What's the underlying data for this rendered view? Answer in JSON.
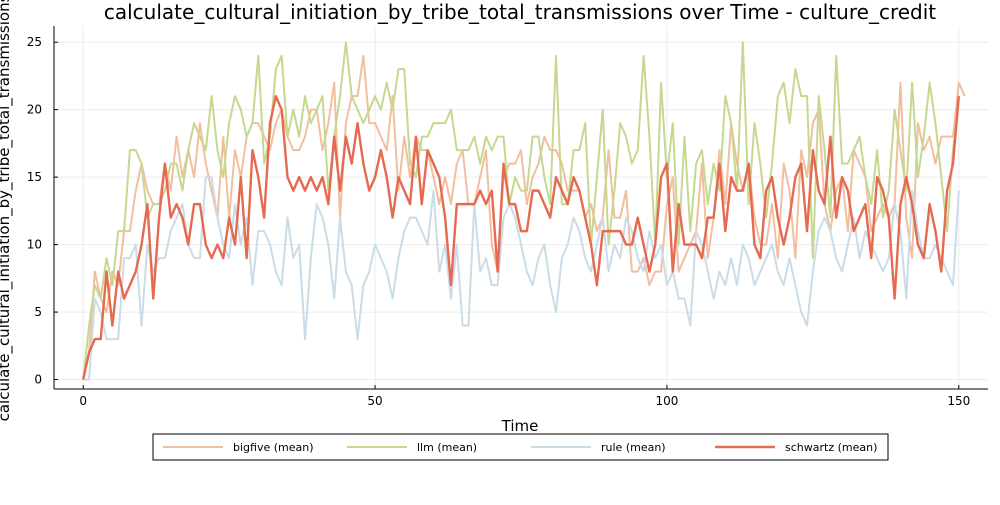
{
  "chart_data": {
    "type": "line",
    "title": "calculate_cultural_initiation_by_tribe_total_transmissions over Time - culture_credit",
    "xlabel": "Time",
    "ylabel": "calculate_cultural_initiation_by_tribe_total_transmissions",
    "xlim": [
      -5,
      155
    ],
    "ylim": [
      -0.7,
      26.2
    ],
    "xticks": [
      0,
      50,
      100,
      150
    ],
    "yticks": [
      0,
      5,
      10,
      15,
      20,
      25
    ],
    "x_tick_labels": [
      "0",
      "50",
      "100",
      "150"
    ],
    "y_tick_labels": [
      "0",
      "5",
      "10",
      "15",
      "20",
      "25"
    ],
    "grid": true,
    "legend_position": "bottom-outside",
    "series": [
      {
        "name": "bigfive (mean)",
        "color": "#f2bf9e",
        "width": 2,
        "values": [
          0,
          2,
          8,
          6,
          5,
          8,
          7,
          11,
          11,
          14,
          16,
          14,
          13,
          13,
          16,
          14,
          18,
          15,
          17,
          15,
          19,
          16,
          14,
          12,
          18,
          12,
          17,
          15,
          18,
          19,
          19,
          18,
          17,
          19,
          20,
          18,
          17,
          17,
          18,
          20,
          20,
          17,
          19,
          22,
          12,
          19,
          21,
          21,
          24,
          19,
          19,
          18,
          17,
          21,
          14,
          18,
          15,
          18,
          17,
          17,
          15,
          13,
          15,
          13,
          16,
          17,
          13,
          13,
          15,
          17,
          10,
          8,
          15,
          16,
          16,
          17,
          13,
          15,
          16,
          18,
          17,
          17,
          16,
          14,
          14,
          14,
          12,
          13,
          11,
          12,
          17,
          12,
          12,
          14,
          8,
          8,
          9,
          7,
          8,
          8,
          13,
          15,
          8,
          9,
          10,
          11,
          16,
          9,
          12,
          17,
          13,
          19,
          16,
          14,
          16,
          12,
          10,
          10,
          13,
          9,
          16,
          14,
          9,
          17,
          15,
          19,
          20,
          13,
          11,
          14,
          15,
          11,
          17,
          16,
          15,
          11,
          12,
          13,
          12,
          13,
          22,
          12,
          9,
          19,
          17,
          18,
          16,
          18,
          18,
          18,
          22,
          21
        ]
      },
      {
        "name": "llm (mean)",
        "color": "#c5d88f",
        "width": 2,
        "values": [
          0,
          4,
          7,
          6,
          9,
          7,
          11,
          11,
          17,
          17,
          16,
          12,
          13,
          13,
          14,
          16,
          16,
          14,
          17,
          19,
          18,
          17,
          21,
          17,
          15,
          19,
          21,
          20,
          18,
          19,
          24,
          16,
          18,
          23,
          24,
          18,
          20,
          18,
          21,
          19,
          20,
          21,
          14,
          18,
          21,
          25,
          21,
          20,
          19,
          20,
          21,
          20,
          22,
          20,
          23,
          23,
          16,
          15,
          18,
          18,
          19,
          19,
          19,
          20,
          17,
          17,
          17,
          18,
          16,
          18,
          17,
          18,
          18,
          13,
          15,
          14,
          14,
          18,
          18,
          15,
          13,
          24,
          13,
          13,
          17,
          17,
          19,
          10,
          15,
          20,
          10,
          14,
          19,
          18,
          16,
          17,
          24,
          18,
          10,
          22,
          15,
          19,
          10,
          18,
          11,
          16,
          17,
          13,
          16,
          14,
          21,
          19,
          14,
          25,
          13,
          19,
          16,
          12,
          16,
          21,
          22,
          19,
          23,
          21,
          21,
          9,
          21,
          17,
          12,
          24,
          16,
          16,
          17,
          18,
          15,
          13,
          17,
          12,
          14,
          20,
          17,
          14,
          22,
          15,
          18,
          22,
          19,
          15,
          11,
          17,
          21
        ]
      },
      {
        "name": "rule (mean)",
        "color": "#c9dce8",
        "width": 2,
        "values": [
          0,
          0,
          6,
          5,
          3,
          3,
          3,
          9,
          9,
          10,
          4,
          10,
          8,
          9,
          9,
          11,
          12,
          13,
          10,
          9,
          9,
          15,
          15,
          12,
          10,
          9,
          13,
          10,
          12,
          7,
          11,
          11,
          10,
          8,
          7,
          12,
          9,
          10,
          3,
          9,
          13,
          12,
          10,
          6,
          12,
          8,
          7,
          3,
          7,
          8,
          10,
          9,
          8,
          6,
          9,
          11,
          12,
          12,
          11,
          10,
          14,
          8,
          10,
          6,
          10,
          4,
          4,
          13,
          8,
          9,
          7,
          7,
          12,
          13,
          12,
          10,
          8,
          7,
          9,
          10,
          7,
          5,
          9,
          10,
          12,
          11,
          9,
          8,
          10,
          12,
          8,
          10,
          9,
          12,
          11,
          9,
          8,
          11,
          9,
          10,
          7,
          8,
          6,
          6,
          4,
          11,
          10,
          8,
          6,
          8,
          7,
          9,
          7,
          10,
          9,
          7,
          8,
          9,
          10,
          8,
          7,
          9,
          7,
          5,
          4,
          8,
          11,
          12,
          11,
          9,
          8,
          10,
          12,
          9,
          11,
          10,
          9,
          8,
          9,
          13,
          11,
          6,
          14,
          11,
          9,
          9,
          10,
          9,
          8,
          7,
          14
        ]
      },
      {
        "name": "schwartz (mean)",
        "color": "#e56a50",
        "width": 2.4,
        "values": [
          0,
          2,
          3,
          3,
          8,
          4,
          8,
          6,
          7,
          8,
          10,
          13,
          6,
          12,
          16,
          12,
          13,
          12,
          10,
          13,
          13,
          10,
          9,
          10,
          9,
          12,
          10,
          15,
          9,
          17,
          15,
          12,
          19,
          21,
          20,
          15,
          14,
          15,
          14,
          15,
          14,
          15,
          13,
          18,
          14,
          18,
          16,
          19,
          16,
          14,
          15,
          17,
          15,
          12,
          15,
          14,
          13,
          18,
          13,
          17,
          16,
          15,
          12,
          7,
          13,
          13,
          13,
          13,
          14,
          13,
          14,
          8,
          16,
          13,
          13,
          11,
          11,
          14,
          14,
          13,
          12,
          15,
          14,
          13,
          15,
          14,
          12,
          10,
          7,
          11,
          11,
          11,
          11,
          10,
          10,
          12,
          10,
          8,
          10,
          15,
          16,
          8,
          13,
          10,
          10,
          10,
          9,
          12,
          12,
          16,
          11,
          15,
          14,
          14,
          16,
          10,
          9,
          14,
          15,
          12,
          10,
          12,
          15,
          16,
          11,
          17,
          14,
          13,
          18,
          12,
          15,
          14,
          11,
          12,
          13,
          9,
          15,
          14,
          12,
          6,
          13,
          15,
          13,
          10,
          9,
          13,
          11,
          8,
          14,
          16,
          21
        ]
      }
    ]
  }
}
